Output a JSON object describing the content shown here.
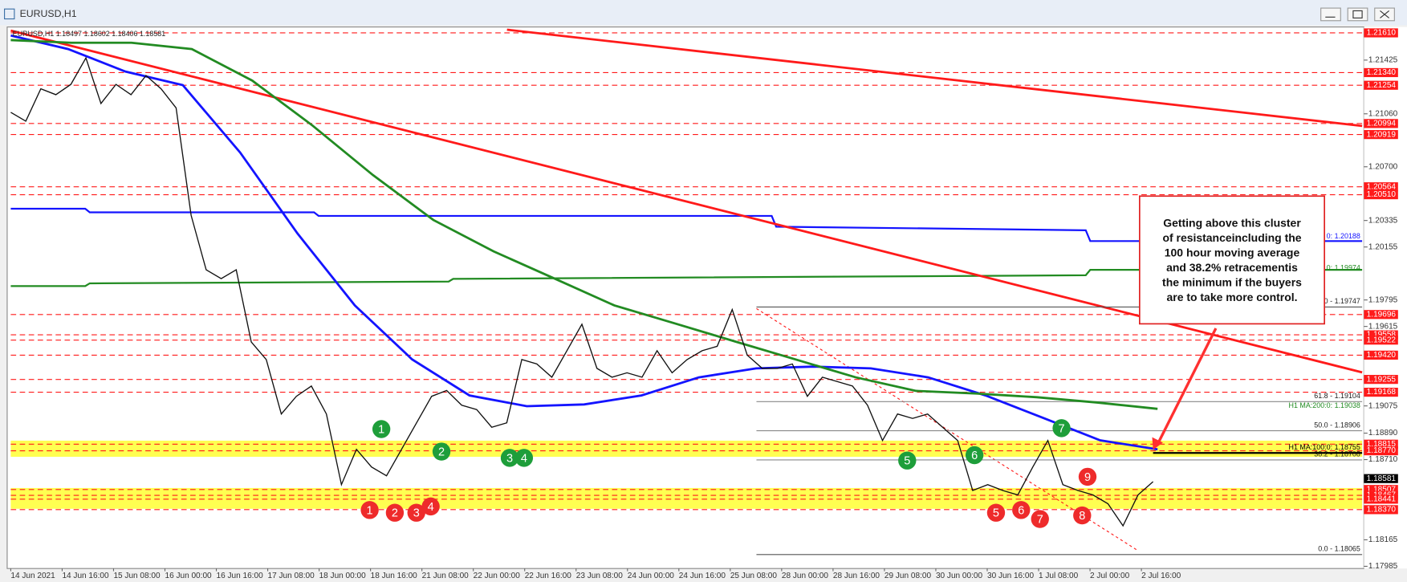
{
  "window": {
    "title": "EURUSD,H1"
  },
  "chart": {
    "info": "EURUSD,H1  1.18497 1.18602 1.18406 1.18581",
    "ylim": [
      1.1797,
      1.2165
    ],
    "price_ticks": [
      {
        "value": 1.21425,
        "label": "1.21425"
      },
      {
        "value": 1.2106,
        "label": "1.21060"
      },
      {
        "value": 1.207,
        "label": "1.20700"
      },
      {
        "value": 1.20335,
        "label": "1.20335"
      },
      {
        "value": 1.20155,
        "label": "1.20155"
      },
      {
        "value": 1.19795,
        "label": "1.19795"
      },
      {
        "value": 1.19615,
        "label": "1.19615"
      },
      {
        "value": 1.19075,
        "label": "1.19075"
      },
      {
        "value": 1.1889,
        "label": "1.18890"
      },
      {
        "value": 1.1871,
        "label": "1.18710"
      },
      {
        "value": 1.18165,
        "label": "1.18165"
      },
      {
        "value": 1.17985,
        "label": "1.17985"
      }
    ],
    "levels": [
      {
        "value": 1.2161,
        "label": "1.21610"
      },
      {
        "value": 1.2134,
        "label": "1.21340"
      },
      {
        "value": 1.21254,
        "label": "1.21254"
      },
      {
        "value": 1.20994,
        "label": "1.20994"
      },
      {
        "value": 1.20919,
        "label": "1.20919"
      },
      {
        "value": 1.20564,
        "label": "1.20564"
      },
      {
        "value": 1.2051,
        "label": "1.20510"
      },
      {
        "value": 1.19696,
        "label": "1.19696"
      },
      {
        "value": 1.19558,
        "label": "1.19558"
      },
      {
        "value": 1.19522,
        "label": "1.19522"
      },
      {
        "value": 1.1942,
        "label": "1.19420"
      },
      {
        "value": 1.19255,
        "label": "1.19255"
      },
      {
        "value": 1.19168,
        "label": "1.19168"
      },
      {
        "value": 1.18815,
        "label": "1.18815"
      },
      {
        "value": 1.1877,
        "label": "1.18770"
      },
      {
        "value": 1.18507,
        "label": "1.18507"
      },
      {
        "value": 1.18467,
        "label": "1.18467"
      },
      {
        "value": 1.18441,
        "label": "1.18441"
      },
      {
        "value": 1.1837,
        "label": "1.18370"
      }
    ],
    "current": {
      "value": 1.18581,
      "label": "1.18581"
    },
    "zones": [
      [
        1.18729,
        1.18839
      ],
      [
        1.18376,
        1.18517
      ]
    ],
    "time_labels": [
      "14 Jun 2021",
      "14 Jun 16:00",
      "15 Jun 08:00",
      "16 Jun 00:00",
      "16 Jun 16:00",
      "17 Jun 08:00",
      "18 Jun 00:00",
      "18 Jun 16:00",
      "21 Jun 08:00",
      "22 Jun 00:00",
      "22 Jun 16:00",
      "23 Jun 08:00",
      "24 Jun 00:00",
      "24 Jun 16:00",
      "25 Jun 08:00",
      "28 Jun 00:00",
      "28 Jun 16:00",
      "29 Jun 08:00",
      "30 Jun 00:00",
      "30 Jun 16:00",
      "1 Jul 08:00",
      "2 Jul 00:00",
      "2 Jul 16:00"
    ],
    "price": [
      1.2107,
      1.2101,
      1.2123,
      1.2119,
      1.2126,
      1.2144,
      1.2113,
      1.2126,
      1.2119,
      1.2132,
      1.2123,
      1.211,
      1.2037,
      1.2,
      1.1994,
      1.2,
      1.1951,
      1.1939,
      1.1902,
      1.1914,
      1.1921,
      1.1902,
      1.1854,
      1.1878,
      1.1866,
      1.186,
      1.1878,
      1.1896,
      1.1914,
      1.1918,
      1.1908,
      1.1905,
      1.1893,
      1.1896,
      1.1939,
      1.1936,
      1.1927,
      1.1945,
      1.1963,
      1.1933,
      1.1927,
      1.193,
      1.1927,
      1.1945,
      1.193,
      1.1939,
      1.1945,
      1.1948,
      1.1973,
      1.1942,
      1.1933,
      1.1933,
      1.1936,
      1.1914,
      1.1927,
      1.1924,
      1.1921,
      1.1908,
      1.1884,
      1.1902,
      1.1899,
      1.1902,
      1.1893,
      1.1884,
      1.185,
      1.1854,
      1.185,
      1.1847,
      1.1866,
      1.1884,
      1.1854,
      1.185,
      1.1847,
      1.1841,
      1.1826,
      1.1847,
      1.1856
    ],
    "ma100": {
      "color": "#1414ff",
      "values": [
        1.21592,
        1.215,
        1.21347,
        1.21255,
        1.20797,
        1.20247,
        1.19758,
        1.19391,
        1.19146,
        1.19073,
        1.19085,
        1.19146,
        1.19269,
        1.1933,
        1.19342,
        1.1933,
        1.19269,
        1.19146,
        1.18994,
        1.18841,
        1.1878
      ]
    },
    "ma200": {
      "color": "#228b22",
      "values": [
        1.21561,
        1.21543,
        1.21543,
        1.215,
        1.21286,
        1.2098,
        1.20644,
        1.20339,
        1.20125,
        1.19942,
        1.19758,
        1.19636,
        1.19513,
        1.19391,
        1.19269,
        1.19177,
        1.19159,
        1.19134,
        1.19098,
        1.19055
      ]
    },
    "fib": [
      {
        "value": 1.19747,
        "label": "0.0 - 1.19747"
      },
      {
        "value": 1.19104,
        "label": "61.8 - 1.19104"
      },
      {
        "value": 1.18906,
        "label": "50.0 - 1.18906"
      },
      {
        "value": 1.18708,
        "label": "38.2 - 1.18708"
      },
      {
        "value": 1.18065,
        "label": "0.0 - 1.18065"
      }
    ],
    "ma_labels": [
      {
        "value": 1.19038,
        "label": "H1 MA:200:0: 1.19038",
        "color": "#228b22"
      },
      {
        "value": 1.18755,
        "label": "H1 MA:100:0: 1.18755",
        "color": "#000000"
      },
      {
        "value": 1.20188,
        "label": "0: 1.20188",
        "color": "#1414ff"
      },
      {
        "value": 1.19974,
        "label": "0: 1.19974",
        "color": "#228b22"
      }
    ],
    "annotation": [
      "Getting above this cluster",
      "of resistanceincluding the",
      "100 hour moving average",
      "and 38.2% retracementis",
      "the minimum if the buyers",
      "are to take more control."
    ],
    "markers": {
      "green": [
        "1",
        "2",
        "3",
        "4",
        "5",
        "6",
        "7"
      ],
      "red": [
        "1",
        "2",
        "3",
        "4",
        "5",
        "6",
        "7",
        "8",
        "9"
      ]
    }
  }
}
